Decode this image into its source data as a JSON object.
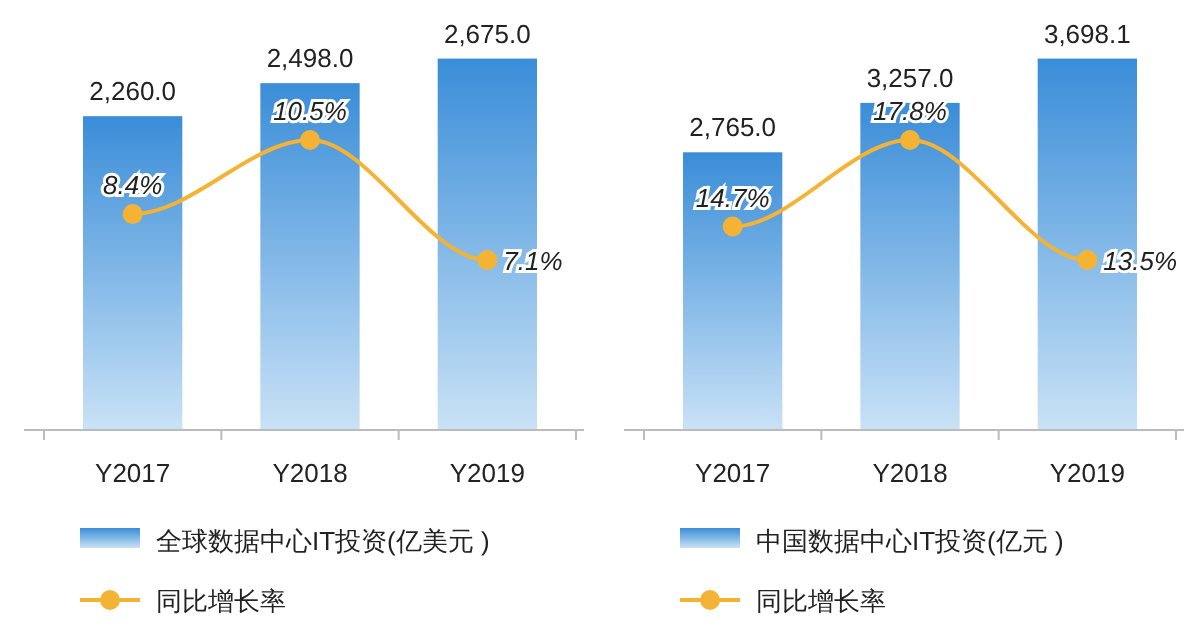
{
  "chart_data": [
    {
      "type": "bar",
      "categories": [
        "Y2017",
        "Y2018",
        "Y2019"
      ],
      "legend": "bottom",
      "series": [
        {
          "name": "全球数据中心IT投资(亿美元 )",
          "type": "bar",
          "color": "#3a8dd8",
          "values": [
            2260.0,
            2498.0,
            2675.0
          ],
          "value_labels": [
            "2,260.0",
            "2,498.0",
            "2,675.0"
          ]
        },
        {
          "name": "同比增长率",
          "type": "line",
          "axis": "y2",
          "marker": "circle",
          "color": "#f5b335",
          "values": [
            8.4,
            10.5,
            7.1
          ],
          "value_labels": [
            "8.4%",
            "10.5%",
            "7.1%"
          ]
        }
      ]
    },
    {
      "type": "bar",
      "categories": [
        "Y2017",
        "Y2018",
        "Y2019"
      ],
      "legend": "bottom",
      "series": [
        {
          "name": "中国数据中心IT投资(亿元 )",
          "type": "bar",
          "color": "#3a8dd8",
          "values": [
            2765.0,
            3257.0,
            3698.1
          ],
          "value_labels": [
            "2,765.0",
            "3,257.0",
            "3,698.1"
          ]
        },
        {
          "name": "同比增长率",
          "type": "line",
          "axis": "y2",
          "marker": "circle",
          "color": "#f5b335",
          "values": [
            14.7,
            17.8,
            13.5
          ],
          "value_labels": [
            "14.7%",
            "17.8%",
            "13.5%"
          ]
        }
      ]
    }
  ]
}
